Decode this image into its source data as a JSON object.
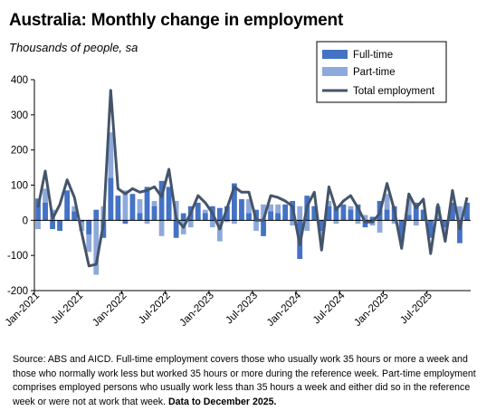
{
  "chart_data": {
    "type": "bar",
    "title": "Australia: Monthly change in employment",
    "subtitle": "Thousands of people, sa",
    "ylim": [
      -200,
      400
    ],
    "yticks": [
      -200,
      -100,
      0,
      100,
      200,
      300,
      400
    ],
    "xtick_labels": [
      "Jan-2021",
      "Jul-2021",
      "Jan-2022",
      "Jul-2022",
      "Jan-2023",
      "Jul-2023",
      "Jan-2024",
      "Jul-2024",
      "Jan-2025",
      "Jul-2025"
    ],
    "xtick_months": [
      0,
      6,
      12,
      18,
      24,
      30,
      36,
      42,
      48,
      54
    ],
    "months": [
      "Jan-2021",
      "Feb-2021",
      "Mar-2021",
      "Apr-2021",
      "May-2021",
      "Jun-2021",
      "Jul-2021",
      "Aug-2021",
      "Sep-2021",
      "Oct-2021",
      "Nov-2021",
      "Dec-2021",
      "Jan-2022",
      "Feb-2022",
      "Mar-2022",
      "Apr-2022",
      "May-2022",
      "Jun-2022",
      "Jul-2022",
      "Aug-2022",
      "Sep-2022",
      "Oct-2022",
      "Nov-2022",
      "Dec-2022",
      "Jan-2023",
      "Feb-2023",
      "Mar-2023",
      "Apr-2023",
      "May-2023",
      "Jun-2023",
      "Jul-2023",
      "Aug-2023",
      "Sep-2023",
      "Oct-2023",
      "Nov-2023",
      "Dec-2023",
      "Jan-2024",
      "Feb-2024",
      "Mar-2024",
      "Apr-2024",
      "May-2024",
      "Jun-2024",
      "Jul-2024",
      "Aug-2024",
      "Sep-2024",
      "Oct-2024",
      "Nov-2024",
      "Dec-2024",
      "Jan-2025",
      "Feb-2025",
      "Mar-2025",
      "Apr-2025",
      "May-2025",
      "Jun-2025",
      "Jul-2025",
      "Aug-2025",
      "Sep-2025",
      "Oct-2025",
      "Nov-2025",
      "Dec-2025"
    ],
    "series": [
      {
        "name": "Full-time",
        "kind": "bar",
        "color": "#4472C4",
        "values": [
          62,
          50,
          -25,
          -30,
          85,
          25,
          -5,
          -40,
          30,
          -50,
          120,
          70,
          -10,
          75,
          20,
          95,
          40,
          112,
          95,
          -50,
          20,
          40,
          50,
          20,
          40,
          35,
          40,
          105,
          60,
          20,
          30,
          -45,
          25,
          20,
          45,
          55,
          -110,
          70,
          40,
          -30,
          40,
          40,
          45,
          30,
          45,
          -20,
          10,
          55,
          30,
          40,
          -60,
          15,
          50,
          30,
          -50,
          5,
          -20,
          50,
          -65,
          50
        ]
      },
      {
        "name": "Part-time",
        "kind": "bar",
        "color": "#8EA9DB",
        "values": [
          -25,
          90,
          30,
          -30,
          30,
          40,
          -30,
          -90,
          -155,
          40,
          250,
          20,
          85,
          15,
          60,
          -10,
          55,
          -45,
          50,
          55,
          -40,
          -20,
          20,
          30,
          -20,
          -60,
          -5,
          -10,
          20,
          60,
          -30,
          45,
          45,
          45,
          10,
          -15,
          40,
          -30,
          40,
          -55,
          55,
          -10,
          10,
          40,
          -10,
          15,
          -15,
          -35,
          75,
          -10,
          -20,
          60,
          -15,
          30,
          -45,
          40,
          -40,
          35,
          40,
          15
        ]
      },
      {
        "name": "Total employment",
        "kind": "line",
        "color": "#44546A",
        "values": [
          37,
          140,
          5,
          45,
          115,
          65,
          -35,
          -130,
          -125,
          -10,
          370,
          90,
          75,
          90,
          80,
          85,
          95,
          67,
          145,
          5,
          -20,
          20,
          70,
          50,
          20,
          -25,
          35,
          95,
          80,
          80,
          0,
          0,
          70,
          65,
          55,
          40,
          -70,
          40,
          80,
          -85,
          95,
          30,
          55,
          70,
          35,
          -5,
          -5,
          20,
          105,
          30,
          -80,
          75,
          35,
          60,
          -95,
          45,
          -60,
          85,
          -25,
          65
        ]
      }
    ],
    "legend_position": "top-right",
    "grid": false
  },
  "source": {
    "text": "Source: ABS and AICD.  Full-time employment covers those who usually work 35 hours or more a week and those who normally work less but worked 35 hours or  more during the reference week.  Part-time employment comprises employed persons who usually work less than 35 hours a week and either did so in the reference week or were not at work that week. ",
    "bold": "Data to December 2025."
  }
}
